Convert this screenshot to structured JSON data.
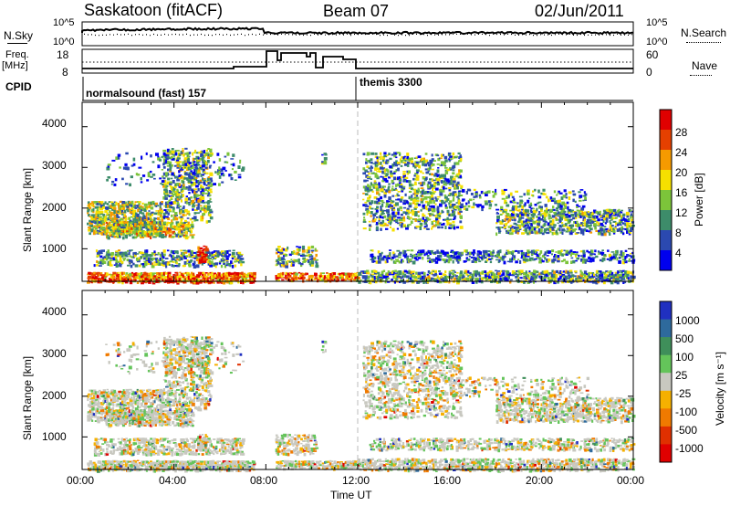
{
  "header": {
    "station": "Saskatoon (fitACF)",
    "beam": "Beam 07",
    "date": "02/Jun/2011"
  },
  "strip1": {
    "left_label": "N.Sky",
    "right_label": "N.Search",
    "left_ticks": [
      "10^5",
      "10^0"
    ],
    "right_ticks": [
      "10^5",
      "10^0"
    ]
  },
  "strip2": {
    "left_label_top": "Freq.",
    "left_label_bottom": "[MHz]",
    "right_label": "Nave",
    "left_ticks": [
      "18",
      "8"
    ],
    "right_ticks": [
      "60",
      "0"
    ]
  },
  "cpid": {
    "label": "CPID",
    "programs": [
      {
        "name": "normalsound (fast) 157"
      },
      {
        "name": "themis 3300"
      }
    ]
  },
  "chart_data": [
    {
      "type": "heatmap",
      "panel": "power",
      "ylabel": "Slant Range [km]",
      "yticks": [
        1000,
        2000,
        3000,
        4000
      ],
      "ylim": [
        200,
        4600
      ],
      "colorbar_label": "Power [dB]",
      "colorbar_ticks": [
        "28",
        "24",
        "20",
        "16",
        "12",
        "8",
        "4"
      ],
      "colors": [
        "#0000ee",
        "#2b49b0",
        "#3d8c6a",
        "#7cc43a",
        "#f5e000",
        "#f59a00",
        "#e54000",
        "#e00000"
      ]
    },
    {
      "type": "heatmap",
      "panel": "velocity",
      "ylabel": "Slant Range [km]",
      "yticks": [
        1000,
        2000,
        3000,
        4000
      ],
      "ylim": [
        200,
        4600
      ],
      "colorbar_label": "Velocity [m s⁻¹]",
      "colorbar_ticks": [
        "1000",
        "500",
        "100",
        "25",
        "-25",
        "-100",
        "-500",
        "-1000"
      ],
      "colors": [
        "#2030c0",
        "#2e6a9c",
        "#3f8f5a",
        "#64c45a",
        "#c8c8c0",
        "#f5b000",
        "#f07a00",
        "#e03000",
        "#e00000"
      ]
    }
  ],
  "x_axis": {
    "label": "Time UT",
    "ticks": [
      "00:00",
      "04:00",
      "08:00",
      "12:00",
      "16:00",
      "20:00",
      "00:00"
    ]
  }
}
